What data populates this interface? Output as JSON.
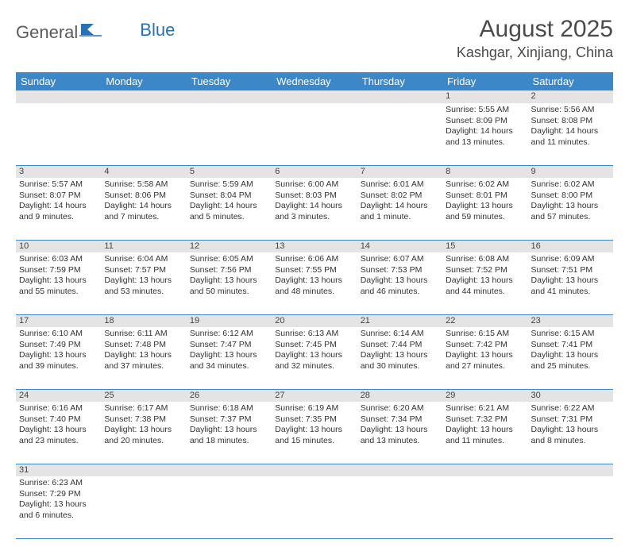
{
  "logo": {
    "text1": "General",
    "text2": "Blue"
  },
  "title": "August 2025",
  "location": "Kashgar, Xinjiang, China",
  "colors": {
    "header_bg": "#3b87c8",
    "header_text": "#ffffff",
    "daynum_bg": "#e4e4e4",
    "border": "#3b87c8",
    "title_color": "#4a4a4a",
    "logo_gray": "#5a5a5a",
    "logo_blue": "#2772b5"
  },
  "day_headers": [
    "Sunday",
    "Monday",
    "Tuesday",
    "Wednesday",
    "Thursday",
    "Friday",
    "Saturday"
  ],
  "weeks": [
    {
      "nums": [
        "",
        "",
        "",
        "",
        "",
        "1",
        "2"
      ],
      "cells": [
        null,
        null,
        null,
        null,
        null,
        {
          "sunrise": "5:55 AM",
          "sunset": "8:09 PM",
          "daylight": "14 hours and 13 minutes."
        },
        {
          "sunrise": "5:56 AM",
          "sunset": "8:08 PM",
          "daylight": "14 hours and 11 minutes."
        }
      ]
    },
    {
      "nums": [
        "3",
        "4",
        "5",
        "6",
        "7",
        "8",
        "9"
      ],
      "cells": [
        {
          "sunrise": "5:57 AM",
          "sunset": "8:07 PM",
          "daylight": "14 hours and 9 minutes."
        },
        {
          "sunrise": "5:58 AM",
          "sunset": "8:06 PM",
          "daylight": "14 hours and 7 minutes."
        },
        {
          "sunrise": "5:59 AM",
          "sunset": "8:04 PM",
          "daylight": "14 hours and 5 minutes."
        },
        {
          "sunrise": "6:00 AM",
          "sunset": "8:03 PM",
          "daylight": "14 hours and 3 minutes."
        },
        {
          "sunrise": "6:01 AM",
          "sunset": "8:02 PM",
          "daylight": "14 hours and 1 minute."
        },
        {
          "sunrise": "6:02 AM",
          "sunset": "8:01 PM",
          "daylight": "13 hours and 59 minutes."
        },
        {
          "sunrise": "6:02 AM",
          "sunset": "8:00 PM",
          "daylight": "13 hours and 57 minutes."
        }
      ]
    },
    {
      "nums": [
        "10",
        "11",
        "12",
        "13",
        "14",
        "15",
        "16"
      ],
      "cells": [
        {
          "sunrise": "6:03 AM",
          "sunset": "7:59 PM",
          "daylight": "13 hours and 55 minutes."
        },
        {
          "sunrise": "6:04 AM",
          "sunset": "7:57 PM",
          "daylight": "13 hours and 53 minutes."
        },
        {
          "sunrise": "6:05 AM",
          "sunset": "7:56 PM",
          "daylight": "13 hours and 50 minutes."
        },
        {
          "sunrise": "6:06 AM",
          "sunset": "7:55 PM",
          "daylight": "13 hours and 48 minutes."
        },
        {
          "sunrise": "6:07 AM",
          "sunset": "7:53 PM",
          "daylight": "13 hours and 46 minutes."
        },
        {
          "sunrise": "6:08 AM",
          "sunset": "7:52 PM",
          "daylight": "13 hours and 44 minutes."
        },
        {
          "sunrise": "6:09 AM",
          "sunset": "7:51 PM",
          "daylight": "13 hours and 41 minutes."
        }
      ]
    },
    {
      "nums": [
        "17",
        "18",
        "19",
        "20",
        "21",
        "22",
        "23"
      ],
      "cells": [
        {
          "sunrise": "6:10 AM",
          "sunset": "7:49 PM",
          "daylight": "13 hours and 39 minutes."
        },
        {
          "sunrise": "6:11 AM",
          "sunset": "7:48 PM",
          "daylight": "13 hours and 37 minutes."
        },
        {
          "sunrise": "6:12 AM",
          "sunset": "7:47 PM",
          "daylight": "13 hours and 34 minutes."
        },
        {
          "sunrise": "6:13 AM",
          "sunset": "7:45 PM",
          "daylight": "13 hours and 32 minutes."
        },
        {
          "sunrise": "6:14 AM",
          "sunset": "7:44 PM",
          "daylight": "13 hours and 30 minutes."
        },
        {
          "sunrise": "6:15 AM",
          "sunset": "7:42 PM",
          "daylight": "13 hours and 27 minutes."
        },
        {
          "sunrise": "6:15 AM",
          "sunset": "7:41 PM",
          "daylight": "13 hours and 25 minutes."
        }
      ]
    },
    {
      "nums": [
        "24",
        "25",
        "26",
        "27",
        "28",
        "29",
        "30"
      ],
      "cells": [
        {
          "sunrise": "6:16 AM",
          "sunset": "7:40 PM",
          "daylight": "13 hours and 23 minutes."
        },
        {
          "sunrise": "6:17 AM",
          "sunset": "7:38 PM",
          "daylight": "13 hours and 20 minutes."
        },
        {
          "sunrise": "6:18 AM",
          "sunset": "7:37 PM",
          "daylight": "13 hours and 18 minutes."
        },
        {
          "sunrise": "6:19 AM",
          "sunset": "7:35 PM",
          "daylight": "13 hours and 15 minutes."
        },
        {
          "sunrise": "6:20 AM",
          "sunset": "7:34 PM",
          "daylight": "13 hours and 13 minutes."
        },
        {
          "sunrise": "6:21 AM",
          "sunset": "7:32 PM",
          "daylight": "13 hours and 11 minutes."
        },
        {
          "sunrise": "6:22 AM",
          "sunset": "7:31 PM",
          "daylight": "13 hours and 8 minutes."
        }
      ]
    },
    {
      "nums": [
        "31",
        "",
        "",
        "",
        "",
        "",
        ""
      ],
      "cells": [
        {
          "sunrise": "6:23 AM",
          "sunset": "7:29 PM",
          "daylight": "13 hours and 6 minutes."
        },
        null,
        null,
        null,
        null,
        null,
        null
      ]
    }
  ],
  "labels": {
    "sunrise": "Sunrise: ",
    "sunset": "Sunset: ",
    "daylight": "Daylight: "
  }
}
